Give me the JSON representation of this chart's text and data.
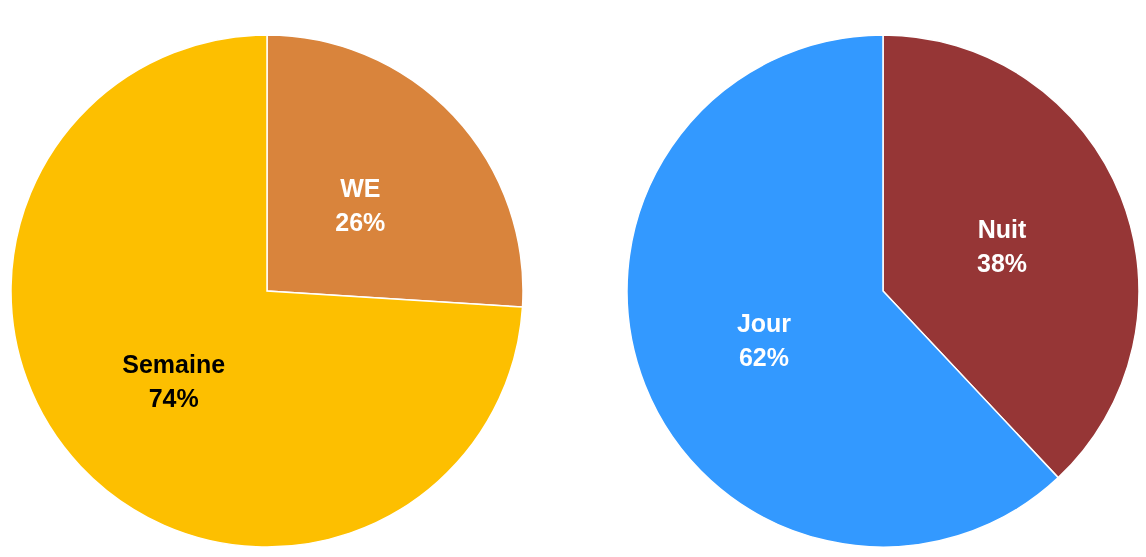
{
  "chart_data": [
    {
      "type": "pie",
      "categories": [
        "WE",
        "Semaine"
      ],
      "values": [
        26,
        74
      ],
      "colors": [
        "#d9843c",
        "#fdbf00"
      ],
      "value_labels": [
        "26%",
        "74%"
      ]
    },
    {
      "type": "pie",
      "categories": [
        "Nuit",
        "Jour"
      ],
      "values": [
        38,
        62
      ],
      "colors": [
        "#963636",
        "#3399ff"
      ],
      "value_labels": [
        "38%",
        "62%"
      ]
    }
  ]
}
